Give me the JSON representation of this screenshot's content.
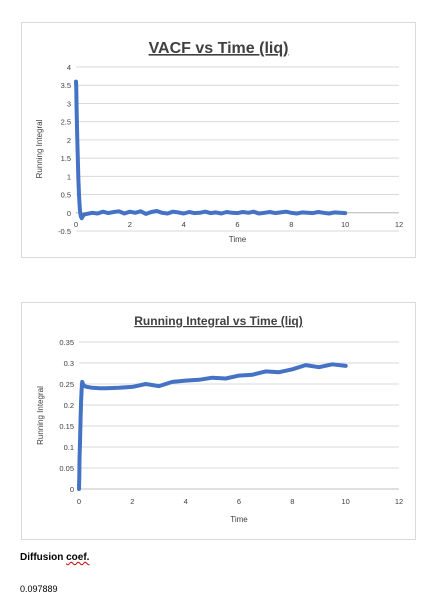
{
  "chart_data": [
    {
      "type": "line",
      "title": "VACF vs Time (liq)",
      "xlabel": "Time",
      "ylabel": "Running Integral",
      "xlim": [
        0,
        12
      ],
      "ylim": [
        -0.5,
        4
      ],
      "xticks": [
        "0",
        "2",
        "4",
        "6",
        "8",
        "10",
        "12"
      ],
      "yticks": [
        "-0.5",
        "0",
        "0.5",
        "1",
        "1.5",
        "2",
        "2.5",
        "3",
        "3.5",
        "4"
      ],
      "grid": true,
      "color": "#4472C4",
      "series": [
        {
          "x": [
            0,
            0.01,
            0.02,
            0.03,
            0.05,
            0.07,
            0.09,
            0.11,
            0.13,
            0.15,
            0.18,
            0.21,
            0.25,
            0.3,
            0.4,
            0.6,
            0.8,
            1.0,
            1.2,
            1.4,
            1.6,
            1.8,
            2.0,
            2.2,
            2.4,
            2.6,
            2.8,
            3.0,
            3.2,
            3.4,
            3.6,
            3.8,
            4.0,
            4.2,
            4.4,
            4.6,
            4.8,
            5.0,
            5.2,
            5.4,
            5.6,
            5.8,
            6.0,
            6.2,
            6.4,
            6.6,
            6.8,
            7.0,
            7.2,
            7.4,
            7.6,
            7.8,
            8.0,
            8.2,
            8.4,
            8.6,
            8.8,
            9.0,
            9.2,
            9.4,
            9.6,
            9.8,
            10.0
          ],
          "y": [
            3.6,
            3.4,
            3.0,
            2.6,
            2.0,
            1.4,
            0.9,
            0.5,
            0.25,
            0.05,
            -0.1,
            -0.15,
            -0.1,
            -0.05,
            -0.03,
            0.0,
            -0.02,
            0.03,
            -0.01,
            0.02,
            0.04,
            -0.02,
            0.03,
            0.0,
            0.04,
            -0.03,
            0.02,
            0.05,
            0.0,
            -0.02,
            0.03,
            0.01,
            -0.02,
            0.02,
            -0.01,
            0.0,
            0.03,
            -0.01,
            0.01,
            -0.02,
            0.02,
            0.0,
            -0.01,
            0.02,
            0.0,
            0.03,
            -0.02,
            0.0,
            0.02,
            -0.01,
            0.01,
            0.03,
            0.0,
            -0.02,
            0.01,
            0.0,
            -0.01,
            0.02,
            0.0,
            -0.02,
            0.01,
            0.0,
            -0.01
          ]
        }
      ]
    },
    {
      "type": "line",
      "title": "Running Integral vs Time (liq)",
      "xlabel": "Time",
      "ylabel": "Running Integral",
      "xlim": [
        0,
        12
      ],
      "ylim": [
        0,
        0.35
      ],
      "xticks": [
        "0",
        "2",
        "4",
        "6",
        "8",
        "10",
        "12"
      ],
      "yticks": [
        "0",
        "0.05",
        "0.1",
        "0.15",
        "0.2",
        "0.25",
        "0.3",
        "0.35"
      ],
      "grid": true,
      "color": "#4472C4",
      "series": [
        {
          "x": [
            0,
            0.01,
            0.02,
            0.04,
            0.06,
            0.08,
            0.1,
            0.12,
            0.15,
            0.2,
            0.3,
            0.5,
            0.8,
            1.0,
            1.5,
            2.0,
            2.5,
            3.0,
            3.5,
            4.0,
            4.5,
            5.0,
            5.5,
            6.0,
            6.5,
            7.0,
            7.5,
            8.0,
            8.5,
            9.0,
            9.5,
            10.0
          ],
          "y": [
            0,
            0.03,
            0.07,
            0.12,
            0.17,
            0.21,
            0.24,
            0.255,
            0.25,
            0.245,
            0.243,
            0.241,
            0.24,
            0.24,
            0.241,
            0.243,
            0.25,
            0.245,
            0.255,
            0.258,
            0.26,
            0.265,
            0.263,
            0.27,
            0.272,
            0.28,
            0.278,
            0.285,
            0.295,
            0.29,
            0.297,
            0.293
          ]
        }
      ]
    }
  ],
  "doc": {
    "label_main": "Diffusion ",
    "label_squiggle": "coef.",
    "value": "0.097889"
  }
}
